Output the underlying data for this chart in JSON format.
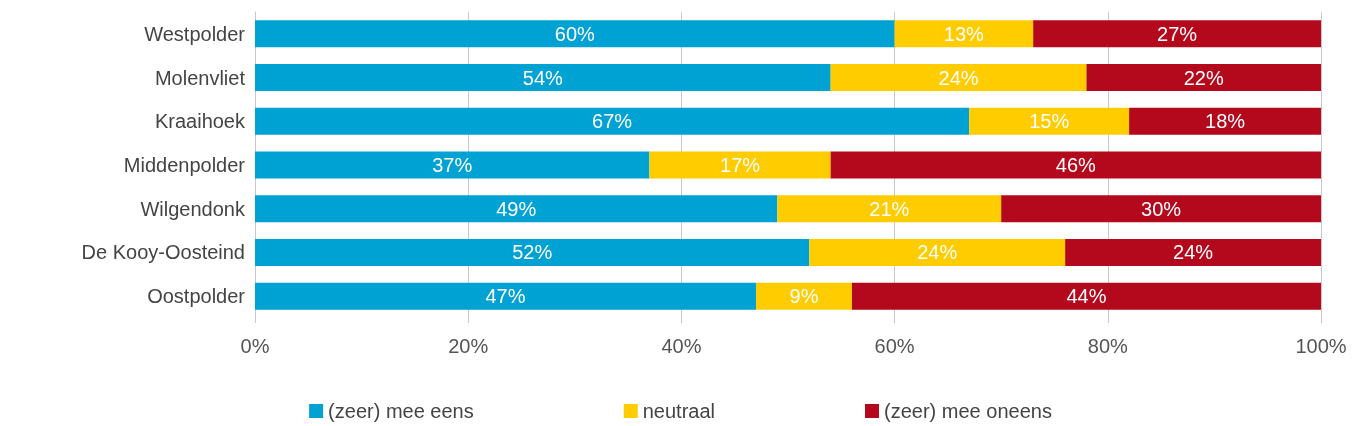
{
  "chart_data": {
    "type": "bar",
    "orientation": "horizontal",
    "stacked": true,
    "categories": [
      "Westpolder",
      "Molenvliet",
      "Kraaihoek",
      "Middenpolder",
      "Wilgendonk",
      "De Kooy-Oosteind",
      "Oostpolder"
    ],
    "series": [
      {
        "name": "(zeer) mee eens",
        "color": "#00a1d3",
        "values": [
          60,
          54,
          67,
          37,
          49,
          52,
          47
        ],
        "value_labels": [
          "60%",
          "54%",
          "67%",
          "37%",
          "49%",
          "52%",
          "47%"
        ]
      },
      {
        "name": "neutraal",
        "color": "#ffcc00",
        "values": [
          13,
          24,
          15,
          17,
          21,
          24,
          9
        ],
        "value_labels": [
          "13%",
          "24%",
          "15%",
          "17%",
          "21%",
          "24%",
          "9%"
        ]
      },
      {
        "name": "(zeer) mee oneens",
        "color": "#b4091c",
        "values": [
          27,
          22,
          18,
          46,
          30,
          24,
          44
        ],
        "value_labels": [
          "27%",
          "22%",
          "18%",
          "46%",
          "30%",
          "24%",
          "44%"
        ]
      }
    ],
    "xlim": [
      0,
      100
    ],
    "xticks": [
      {
        "value": 0,
        "label": "0%"
      },
      {
        "value": 20,
        "label": "20%"
      },
      {
        "value": 40,
        "label": "40%"
      },
      {
        "value": 60,
        "label": "60%"
      },
      {
        "value": 80,
        "label": "80%"
      },
      {
        "value": 100,
        "label": "100%"
      }
    ],
    "grid": "x",
    "legend": "bottom"
  }
}
